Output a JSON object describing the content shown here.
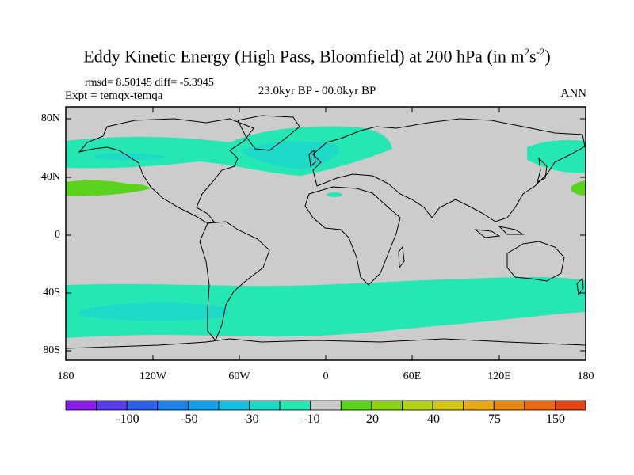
{
  "title": {
    "main": "Eddy Kinetic Energy (High Pass, Bloomfield) at 200 hPa (in m",
    "sup1": "2",
    "mid": "s",
    "sup2": "-2",
    "end": ")"
  },
  "stats": "rmsd= 8.50145 diff= -5.3945",
  "expt": "Expt = temqx-temqa",
  "period": "23.0kyr BP - 00.0kyr BP",
  "season": "ANN",
  "lat_labels": [
    "80N",
    "40N",
    "0",
    "40S",
    "80S"
  ],
  "lon_labels": [
    "180",
    "120W",
    "60W",
    "0",
    "60E",
    "120E",
    "180"
  ],
  "colorbar": {
    "labels": [
      "-100",
      "-50",
      "-30",
      "-10",
      "20",
      "40",
      "75",
      "150"
    ],
    "colors": [
      "#8a1ee6",
      "#5a3ce6",
      "#2e5fe6",
      "#1e82e6",
      "#14a0e6",
      "#14c0e0",
      "#1ed8c8",
      "#26e6b4",
      "#cccccc",
      "#5ad21e",
      "#8cd214",
      "#b4d214",
      "#d2c814",
      "#e6aa14",
      "#e68a14",
      "#e66a14",
      "#e64414"
    ]
  },
  "map_colors": {
    "ocean": "#cccccc",
    "neg": "#26e6b4",
    "band": "#1ed8c8",
    "pos": "#5ad21e",
    "coast": "#000000"
  }
}
